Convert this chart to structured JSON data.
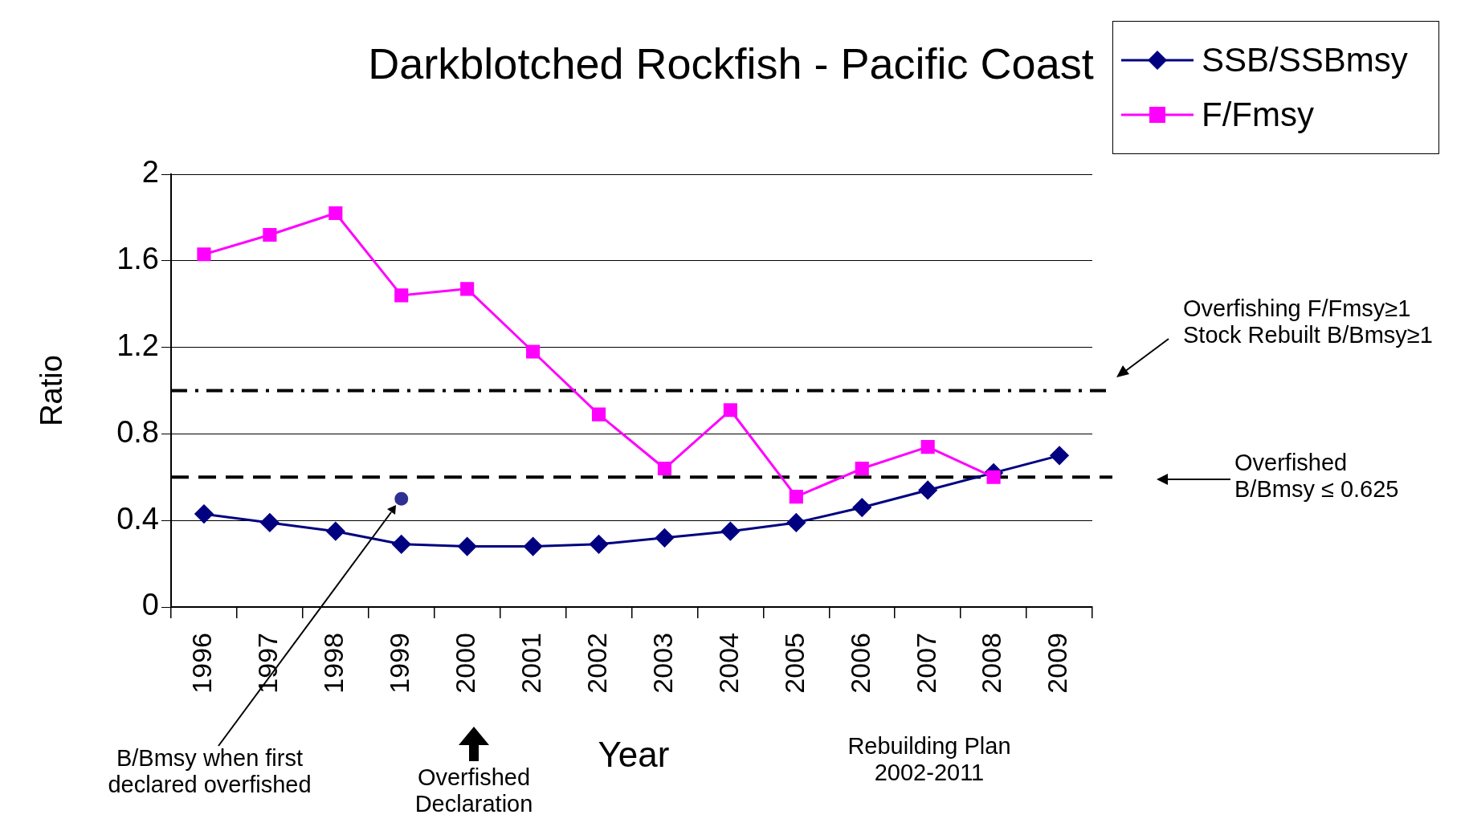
{
  "chart_data": {
    "type": "line",
    "title": "Darkblotched Rockfish - Pacific Coast",
    "xlabel": "Year",
    "ylabel": "Ratio",
    "categories": [
      "1996",
      "1997",
      "1998",
      "1999",
      "2000",
      "2001",
      "2002",
      "2003",
      "2004",
      "2005",
      "2006",
      "2007",
      "2008",
      "2009"
    ],
    "series": [
      {
        "name": "SSB/SSBmsy",
        "color": "#000080",
        "marker": "diamond",
        "values": [
          0.43,
          0.39,
          0.35,
          0.29,
          0.28,
          0.28,
          0.29,
          0.32,
          0.35,
          0.39,
          0.46,
          0.54,
          0.62,
          0.7
        ]
      },
      {
        "name": "F/Fmsy",
        "color": "#ff00ff",
        "marker": "square",
        "values": [
          1.63,
          1.72,
          1.82,
          1.44,
          1.47,
          1.18,
          0.89,
          0.64,
          0.91,
          0.51,
          0.64,
          0.74,
          0.6,
          null
        ]
      },
      {
        "type": "scatter",
        "values": [
          null,
          null,
          null,
          0.5,
          null,
          null,
          null,
          null,
          null,
          null,
          null,
          null,
          null,
          null
        ],
        "color": "#2e3192",
        "marker": "circle"
      }
    ],
    "ylim": [
      0,
      2
    ],
    "yticks": [
      0,
      0.4,
      0.8,
      1.2,
      1.6,
      2
    ],
    "grid": "y",
    "legend": "top right",
    "ref_lines": [
      {
        "axis": "y",
        "value": 1,
        "color": "#000000",
        "line_style": "dashdot"
      },
      {
        "axis": "y",
        "value": 0.6,
        "color": "#000000",
        "line_style": "dashed"
      }
    ],
    "annotations": [
      "Overfishing F/Fmsy≥1\nStock Rebuilt B/Bmsy≥1",
      "Overfished\nB/Bmsy ≤ 0.625",
      "B/Bmsy when first\ndeclared overfished",
      "Overfished\nDeclaration",
      "Rebuilding Plan\n2002-2011"
    ]
  }
}
